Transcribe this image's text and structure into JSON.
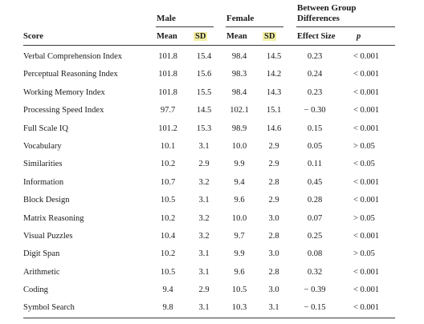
{
  "groups": {
    "male": "Male",
    "female": "Female",
    "between_line1": "Between Group",
    "between_line2": "Differences"
  },
  "columns": {
    "score": "Score",
    "male_mean": "Mean",
    "male_sd": "SD",
    "female_mean": "Mean",
    "female_sd": "SD",
    "effect_size": "Effect Size",
    "p": "p"
  },
  "rows": [
    {
      "score": "Verbal Comprehension Index",
      "male_mean": "101.8",
      "male_sd": "15.4",
      "female_mean": "98.4",
      "female_sd": "14.5",
      "effect_size": "0.23",
      "p": "< 0.001"
    },
    {
      "score": "Perceptual Reasoning Index",
      "male_mean": "101.8",
      "male_sd": "15.6",
      "female_mean": "98.3",
      "female_sd": "14.2",
      "effect_size": "0.24",
      "p": "< 0.001"
    },
    {
      "score": "Working Memory Index",
      "male_mean": "101.8",
      "male_sd": "15.5",
      "female_mean": "98.4",
      "female_sd": "14.3",
      "effect_size": "0.23",
      "p": "< 0.001"
    },
    {
      "score": "Processing Speed Index",
      "male_mean": "97.7",
      "male_sd": "14.5",
      "female_mean": "102.1",
      "female_sd": "15.1",
      "effect_size": "− 0.30",
      "p": "< 0.001"
    },
    {
      "score": "Full Scale IQ",
      "male_mean": "101.2",
      "male_sd": "15.3",
      "female_mean": "98.9",
      "female_sd": "14.6",
      "effect_size": "0.15",
      "p": "< 0.001"
    },
    {
      "score": "Vocabulary",
      "male_mean": "10.1",
      "male_sd": "3.1",
      "female_mean": "10.0",
      "female_sd": "2.9",
      "effect_size": "0.05",
      "p": "> 0.05"
    },
    {
      "score": "Similarities",
      "male_mean": "10.2",
      "male_sd": "2.9",
      "female_mean": "9.9",
      "female_sd": "2.9",
      "effect_size": "0.11",
      "p": "< 0.05"
    },
    {
      "score": "Information",
      "male_mean": "10.7",
      "male_sd": "3.2",
      "female_mean": "9.4",
      "female_sd": "2.8",
      "effect_size": "0.45",
      "p": "< 0.001"
    },
    {
      "score": "Block Design",
      "male_mean": "10.5",
      "male_sd": "3.1",
      "female_mean": "9.6",
      "female_sd": "2.9",
      "effect_size": "0.28",
      "p": "< 0.001"
    },
    {
      "score": "Matrix Reasoning",
      "male_mean": "10.2",
      "male_sd": "3.2",
      "female_mean": "10.0",
      "female_sd": "3.0",
      "effect_size": "0.07",
      "p": "> 0.05"
    },
    {
      "score": "Visual Puzzles",
      "male_mean": "10.4",
      "male_sd": "3.2",
      "female_mean": "9.7",
      "female_sd": "2.8",
      "effect_size": "0.25",
      "p": "< 0.001"
    },
    {
      "score": "Digit Span",
      "male_mean": "10.2",
      "male_sd": "3.1",
      "female_mean": "9.9",
      "female_sd": "3.0",
      "effect_size": "0.08",
      "p": "> 0.05"
    },
    {
      "score": "Arithmetic",
      "male_mean": "10.5",
      "male_sd": "3.1",
      "female_mean": "9.6",
      "female_sd": "2.8",
      "effect_size": "0.32",
      "p": "< 0.001"
    },
    {
      "score": "Coding",
      "male_mean": "9.4",
      "male_sd": "2.9",
      "female_mean": "10.5",
      "female_sd": "3.0",
      "effect_size": "− 0.39",
      "p": "< 0.001"
    },
    {
      "score": "Symbol Search",
      "male_mean": "9.8",
      "male_sd": "3.1",
      "female_mean": "10.3",
      "female_sd": "3.1",
      "effect_size": "− 0.15",
      "p": "< 0.001"
    }
  ],
  "colors": {
    "sd_highlight": "#f3f0a6",
    "rule": "#3a3a3a",
    "text": "#1a1a1a"
  }
}
